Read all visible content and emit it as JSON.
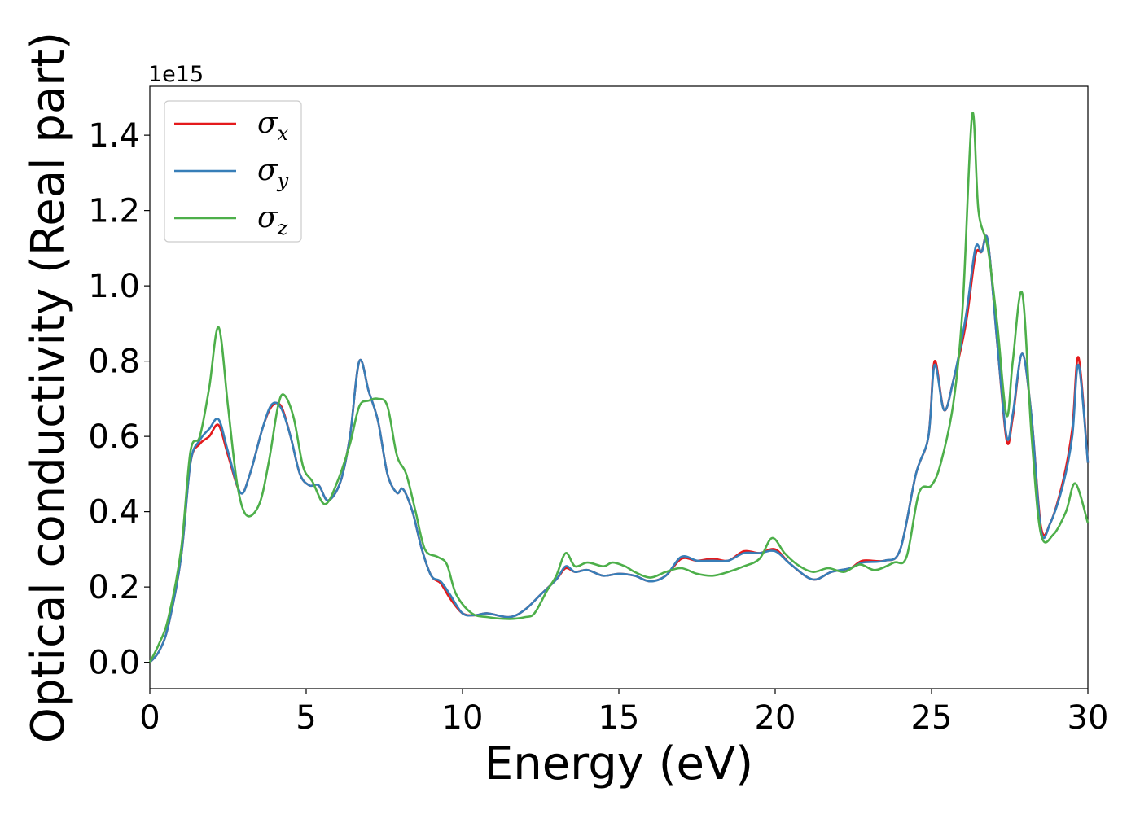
{
  "chart_data": {
    "type": "line",
    "title": "",
    "xlabel": "Energy (eV)",
    "ylabel": "Optical conductivity (Real part)",
    "y_offset_label": "1e15",
    "y_scale": 1000000000000000.0,
    "xlim": [
      0,
      30
    ],
    "ylim": [
      -0.07,
      1.53
    ],
    "x_ticks": [
      0,
      5,
      10,
      15,
      20,
      25,
      30
    ],
    "y_ticks": [
      0.0,
      0.2,
      0.4,
      0.6,
      0.8,
      1.0,
      1.2,
      1.4
    ],
    "grid": false,
    "legend_position": "top-left",
    "series": [
      {
        "name": "σx",
        "symbol": "σ",
        "subscript": "x",
        "color": "#e41a1c",
        "points": [
          [
            0,
            0
          ],
          [
            0.3,
            0.03
          ],
          [
            0.6,
            0.1
          ],
          [
            1.0,
            0.28
          ],
          [
            1.3,
            0.53
          ],
          [
            1.6,
            0.58
          ],
          [
            1.9,
            0.6
          ],
          [
            2.2,
            0.63
          ],
          [
            2.5,
            0.55
          ],
          [
            2.9,
            0.45
          ],
          [
            3.2,
            0.5
          ],
          [
            3.6,
            0.62
          ],
          [
            3.9,
            0.68
          ],
          [
            4.2,
            0.68
          ],
          [
            4.5,
            0.6
          ],
          [
            4.8,
            0.5
          ],
          [
            5.1,
            0.47
          ],
          [
            5.4,
            0.47
          ],
          [
            5.7,
            0.43
          ],
          [
            6.1,
            0.48
          ],
          [
            6.4,
            0.6
          ],
          [
            6.7,
            0.8
          ],
          [
            7.0,
            0.72
          ],
          [
            7.3,
            0.64
          ],
          [
            7.6,
            0.5
          ],
          [
            7.9,
            0.45
          ],
          [
            8.1,
            0.46
          ],
          [
            8.4,
            0.4
          ],
          [
            8.7,
            0.3
          ],
          [
            9.0,
            0.23
          ],
          [
            9.3,
            0.21
          ],
          [
            9.6,
            0.17
          ],
          [
            10.0,
            0.13
          ],
          [
            10.4,
            0.125
          ],
          [
            10.8,
            0.13
          ],
          [
            11.5,
            0.12
          ],
          [
            12.0,
            0.14
          ],
          [
            12.5,
            0.18
          ],
          [
            13.0,
            0.22
          ],
          [
            13.3,
            0.25
          ],
          [
            13.6,
            0.24
          ],
          [
            14.0,
            0.245
          ],
          [
            14.5,
            0.23
          ],
          [
            15.0,
            0.235
          ],
          [
            15.5,
            0.23
          ],
          [
            16.0,
            0.215
          ],
          [
            16.5,
            0.23
          ],
          [
            17.0,
            0.275
          ],
          [
            17.5,
            0.27
          ],
          [
            18.0,
            0.275
          ],
          [
            18.5,
            0.27
          ],
          [
            19.0,
            0.295
          ],
          [
            19.5,
            0.29
          ],
          [
            20.0,
            0.3
          ],
          [
            20.5,
            0.26
          ],
          [
            21.2,
            0.22
          ],
          [
            21.8,
            0.24
          ],
          [
            22.4,
            0.25
          ],
          [
            22.8,
            0.27
          ],
          [
            23.5,
            0.27
          ],
          [
            24.0,
            0.3
          ],
          [
            24.5,
            0.5
          ],
          [
            24.9,
            0.6
          ],
          [
            25.1,
            0.8
          ],
          [
            25.4,
            0.67
          ],
          [
            25.7,
            0.75
          ],
          [
            26.1,
            0.9
          ],
          [
            26.4,
            1.08
          ],
          [
            26.6,
            1.09
          ],
          [
            26.8,
            1.12
          ],
          [
            27.1,
            0.85
          ],
          [
            27.4,
            0.59
          ],
          [
            27.6,
            0.65
          ],
          [
            27.9,
            0.82
          ],
          [
            28.2,
            0.65
          ],
          [
            28.5,
            0.36
          ],
          [
            28.8,
            0.37
          ],
          [
            29.2,
            0.48
          ],
          [
            29.5,
            0.62
          ],
          [
            29.7,
            0.81
          ],
          [
            30.0,
            0.53
          ]
        ]
      },
      {
        "name": "σy",
        "symbol": "σ",
        "subscript": "y",
        "color": "#377eb8",
        "points": [
          [
            0,
            0
          ],
          [
            0.3,
            0.03
          ],
          [
            0.6,
            0.1
          ],
          [
            1.0,
            0.28
          ],
          [
            1.3,
            0.53
          ],
          [
            1.6,
            0.59
          ],
          [
            1.9,
            0.62
          ],
          [
            2.2,
            0.645
          ],
          [
            2.5,
            0.56
          ],
          [
            2.9,
            0.45
          ],
          [
            3.2,
            0.5
          ],
          [
            3.6,
            0.62
          ],
          [
            3.9,
            0.685
          ],
          [
            4.2,
            0.675
          ],
          [
            4.5,
            0.6
          ],
          [
            4.8,
            0.5
          ],
          [
            5.1,
            0.47
          ],
          [
            5.4,
            0.47
          ],
          [
            5.7,
            0.43
          ],
          [
            6.1,
            0.48
          ],
          [
            6.4,
            0.6
          ],
          [
            6.7,
            0.8
          ],
          [
            7.0,
            0.72
          ],
          [
            7.3,
            0.64
          ],
          [
            7.6,
            0.5
          ],
          [
            7.9,
            0.45
          ],
          [
            8.1,
            0.46
          ],
          [
            8.4,
            0.4
          ],
          [
            8.7,
            0.3
          ],
          [
            9.0,
            0.23
          ],
          [
            9.3,
            0.215
          ],
          [
            9.6,
            0.18
          ],
          [
            10.0,
            0.13
          ],
          [
            10.4,
            0.125
          ],
          [
            10.8,
            0.13
          ],
          [
            11.5,
            0.12
          ],
          [
            12.0,
            0.14
          ],
          [
            12.5,
            0.18
          ],
          [
            13.0,
            0.22
          ],
          [
            13.3,
            0.255
          ],
          [
            13.6,
            0.24
          ],
          [
            14.0,
            0.245
          ],
          [
            14.5,
            0.23
          ],
          [
            15.0,
            0.235
          ],
          [
            15.5,
            0.23
          ],
          [
            16.0,
            0.215
          ],
          [
            16.5,
            0.23
          ],
          [
            17.0,
            0.28
          ],
          [
            17.5,
            0.27
          ],
          [
            18.0,
            0.27
          ],
          [
            18.5,
            0.27
          ],
          [
            19.0,
            0.29
          ],
          [
            19.5,
            0.29
          ],
          [
            20.0,
            0.295
          ],
          [
            20.5,
            0.26
          ],
          [
            21.2,
            0.22
          ],
          [
            21.8,
            0.24
          ],
          [
            22.4,
            0.25
          ],
          [
            22.8,
            0.265
          ],
          [
            23.5,
            0.27
          ],
          [
            24.0,
            0.3
          ],
          [
            24.5,
            0.5
          ],
          [
            24.9,
            0.6
          ],
          [
            25.1,
            0.79
          ],
          [
            25.4,
            0.67
          ],
          [
            25.7,
            0.75
          ],
          [
            26.1,
            0.92
          ],
          [
            26.4,
            1.1
          ],
          [
            26.6,
            1.09
          ],
          [
            26.8,
            1.12
          ],
          [
            27.1,
            0.85
          ],
          [
            27.4,
            0.6
          ],
          [
            27.6,
            0.66
          ],
          [
            27.9,
            0.82
          ],
          [
            28.2,
            0.65
          ],
          [
            28.5,
            0.35
          ],
          [
            28.8,
            0.37
          ],
          [
            29.2,
            0.47
          ],
          [
            29.5,
            0.6
          ],
          [
            29.7,
            0.79
          ],
          [
            30.0,
            0.53
          ]
        ]
      },
      {
        "name": "σz",
        "symbol": "σ",
        "subscript": "z",
        "color": "#4daf4a",
        "points": [
          [
            0,
            0
          ],
          [
            0.3,
            0.05
          ],
          [
            0.6,
            0.12
          ],
          [
            1.0,
            0.3
          ],
          [
            1.3,
            0.56
          ],
          [
            1.6,
            0.6
          ],
          [
            1.9,
            0.73
          ],
          [
            2.2,
            0.89
          ],
          [
            2.5,
            0.68
          ],
          [
            2.8,
            0.47
          ],
          [
            3.1,
            0.39
          ],
          [
            3.5,
            0.42
          ],
          [
            3.8,
            0.53
          ],
          [
            4.1,
            0.68
          ],
          [
            4.3,
            0.71
          ],
          [
            4.6,
            0.65
          ],
          [
            4.9,
            0.52
          ],
          [
            5.2,
            0.48
          ],
          [
            5.6,
            0.42
          ],
          [
            6.0,
            0.48
          ],
          [
            6.4,
            0.58
          ],
          [
            6.7,
            0.68
          ],
          [
            7.0,
            0.695
          ],
          [
            7.3,
            0.7
          ],
          [
            7.6,
            0.68
          ],
          [
            7.9,
            0.55
          ],
          [
            8.2,
            0.5
          ],
          [
            8.5,
            0.4
          ],
          [
            8.8,
            0.3
          ],
          [
            9.2,
            0.28
          ],
          [
            9.5,
            0.26
          ],
          [
            9.8,
            0.18
          ],
          [
            10.3,
            0.13
          ],
          [
            10.8,
            0.12
          ],
          [
            11.5,
            0.115
          ],
          [
            12.0,
            0.12
          ],
          [
            12.3,
            0.13
          ],
          [
            12.7,
            0.19
          ],
          [
            13.0,
            0.23
          ],
          [
            13.3,
            0.29
          ],
          [
            13.6,
            0.255
          ],
          [
            14.0,
            0.265
          ],
          [
            14.5,
            0.255
          ],
          [
            14.8,
            0.265
          ],
          [
            15.2,
            0.255
          ],
          [
            15.5,
            0.24
          ],
          [
            16.0,
            0.225
          ],
          [
            16.5,
            0.24
          ],
          [
            17.0,
            0.25
          ],
          [
            17.5,
            0.235
          ],
          [
            18.0,
            0.23
          ],
          [
            18.5,
            0.24
          ],
          [
            19.0,
            0.255
          ],
          [
            19.5,
            0.275
          ],
          [
            19.9,
            0.33
          ],
          [
            20.3,
            0.29
          ],
          [
            20.7,
            0.26
          ],
          [
            21.2,
            0.24
          ],
          [
            21.7,
            0.25
          ],
          [
            22.2,
            0.24
          ],
          [
            22.7,
            0.26
          ],
          [
            23.2,
            0.245
          ],
          [
            23.8,
            0.265
          ],
          [
            24.2,
            0.28
          ],
          [
            24.6,
            0.45
          ],
          [
            25.0,
            0.47
          ],
          [
            25.3,
            0.53
          ],
          [
            25.7,
            0.69
          ],
          [
            26.0,
            0.95
          ],
          [
            26.3,
            1.455
          ],
          [
            26.5,
            1.2
          ],
          [
            26.8,
            1.1
          ],
          [
            27.1,
            0.9
          ],
          [
            27.4,
            0.655
          ],
          [
            27.6,
            0.8
          ],
          [
            27.9,
            0.98
          ],
          [
            28.2,
            0.6
          ],
          [
            28.5,
            0.34
          ],
          [
            28.9,
            0.34
          ],
          [
            29.3,
            0.4
          ],
          [
            29.6,
            0.475
          ],
          [
            30.0,
            0.37
          ]
        ]
      }
    ]
  }
}
